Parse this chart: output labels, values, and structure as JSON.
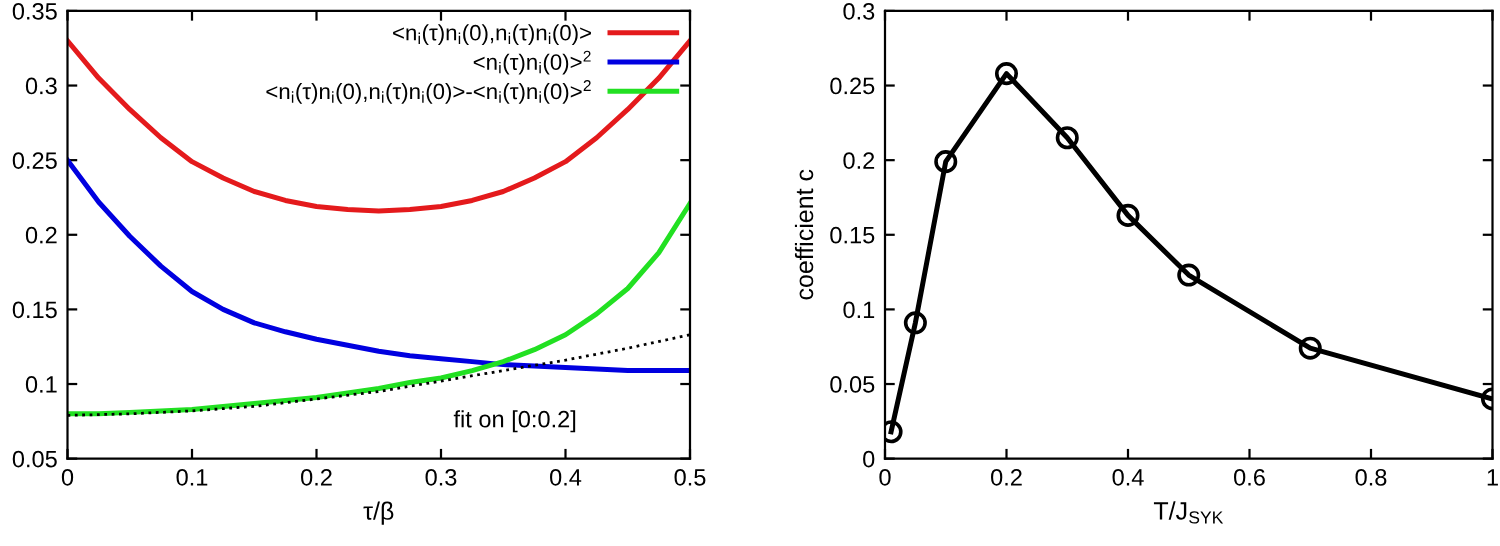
{
  "chart_data": [
    {
      "type": "line",
      "xlabel": "τ/β",
      "xlim": [
        0,
        0.5
      ],
      "ylim": [
        0.05,
        0.35
      ],
      "xticks": [
        0,
        0.1,
        0.2,
        0.3,
        0.4,
        0.5
      ],
      "yticks": [
        0.05,
        0.1,
        0.15,
        0.2,
        0.25,
        0.3,
        0.35
      ],
      "legend": "top right",
      "marker": "none",
      "x": [
        0,
        0.025,
        0.05,
        0.075,
        0.1,
        0.125,
        0.15,
        0.175,
        0.2,
        0.225,
        0.25,
        0.275,
        0.3,
        0.325,
        0.35,
        0.375,
        0.4,
        0.425,
        0.45,
        0.475,
        0.5
      ],
      "series": [
        {
          "name": "<n$_{i}$(τ)n$_{i}$(0),n$_{i}$(τ)n$_{i}$(0)>",
          "color": "#e41a1c",
          "values": [
            0.33,
            0.305,
            0.284,
            0.265,
            0.249,
            0.238,
            0.229,
            0.223,
            0.219,
            0.217,
            0.216,
            0.217,
            0.219,
            0.223,
            0.229,
            0.238,
            0.249,
            0.265,
            0.284,
            0.305,
            0.33
          ]
        },
        {
          "name": "<n$_{i}$(τ)n$_{i}$(0)>$^{2}$",
          "color": "#0000e0",
          "values": [
            0.25,
            0.222,
            0.199,
            0.179,
            0.162,
            0.15,
            0.141,
            0.135,
            0.13,
            0.126,
            0.122,
            0.119,
            0.117,
            0.115,
            0.113,
            0.112,
            0.111,
            0.11,
            0.109,
            0.109,
            0.109
          ]
        },
        {
          "name": "<n$_{i}$(τ)n$_{i}$(0),n$_{i}$(τ)n$_{i}$(0)>-<n$_{i}$(τ)n$_{i}$(0)>$^{2}$",
          "color": "#22e022",
          "values": [
            0.08,
            0.08,
            0.081,
            0.082,
            0.083,
            0.085,
            0.087,
            0.089,
            0.091,
            0.094,
            0.097,
            0.101,
            0.104,
            0.109,
            0.115,
            0.123,
            0.133,
            0.147,
            0.164,
            0.188,
            0.221
          ]
        },
        {
          "color": "#000000",
          "line_style": "dotted",
          "x": [
            0,
            0.05,
            0.1,
            0.15,
            0.2,
            0.25,
            0.3,
            0.35,
            0.4,
            0.45,
            0.5
          ],
          "values": [
            0.079,
            0.08,
            0.082,
            0.085,
            0.09,
            0.095,
            0.102,
            0.109,
            0.116,
            0.124,
            0.133
          ]
        }
      ],
      "annotations": [
        "fit on [0:0.2]"
      ]
    },
    {
      "type": "line",
      "xlabel": "T/J$_{SYK}$",
      "ylabel": "coefficient c",
      "xlim": [
        0,
        1
      ],
      "ylim": [
        0,
        0.3
      ],
      "xticks": [
        0,
        0.2,
        0.4,
        0.6,
        0.8,
        1
      ],
      "yticks": [
        0,
        0.05,
        0.1,
        0.15,
        0.2,
        0.25,
        0.3
      ],
      "marker": "circle",
      "x": [
        0.01,
        0.05,
        0.1,
        0.2,
        0.3,
        0.4,
        0.5,
        0.7,
        1.0
      ],
      "series": [
        {
          "color": "#000000",
          "values": [
            0.018,
            0.091,
            0.199,
            0.258,
            0.215,
            0.163,
            0.123,
            0.074,
            0.04
          ]
        }
      ]
    }
  ]
}
